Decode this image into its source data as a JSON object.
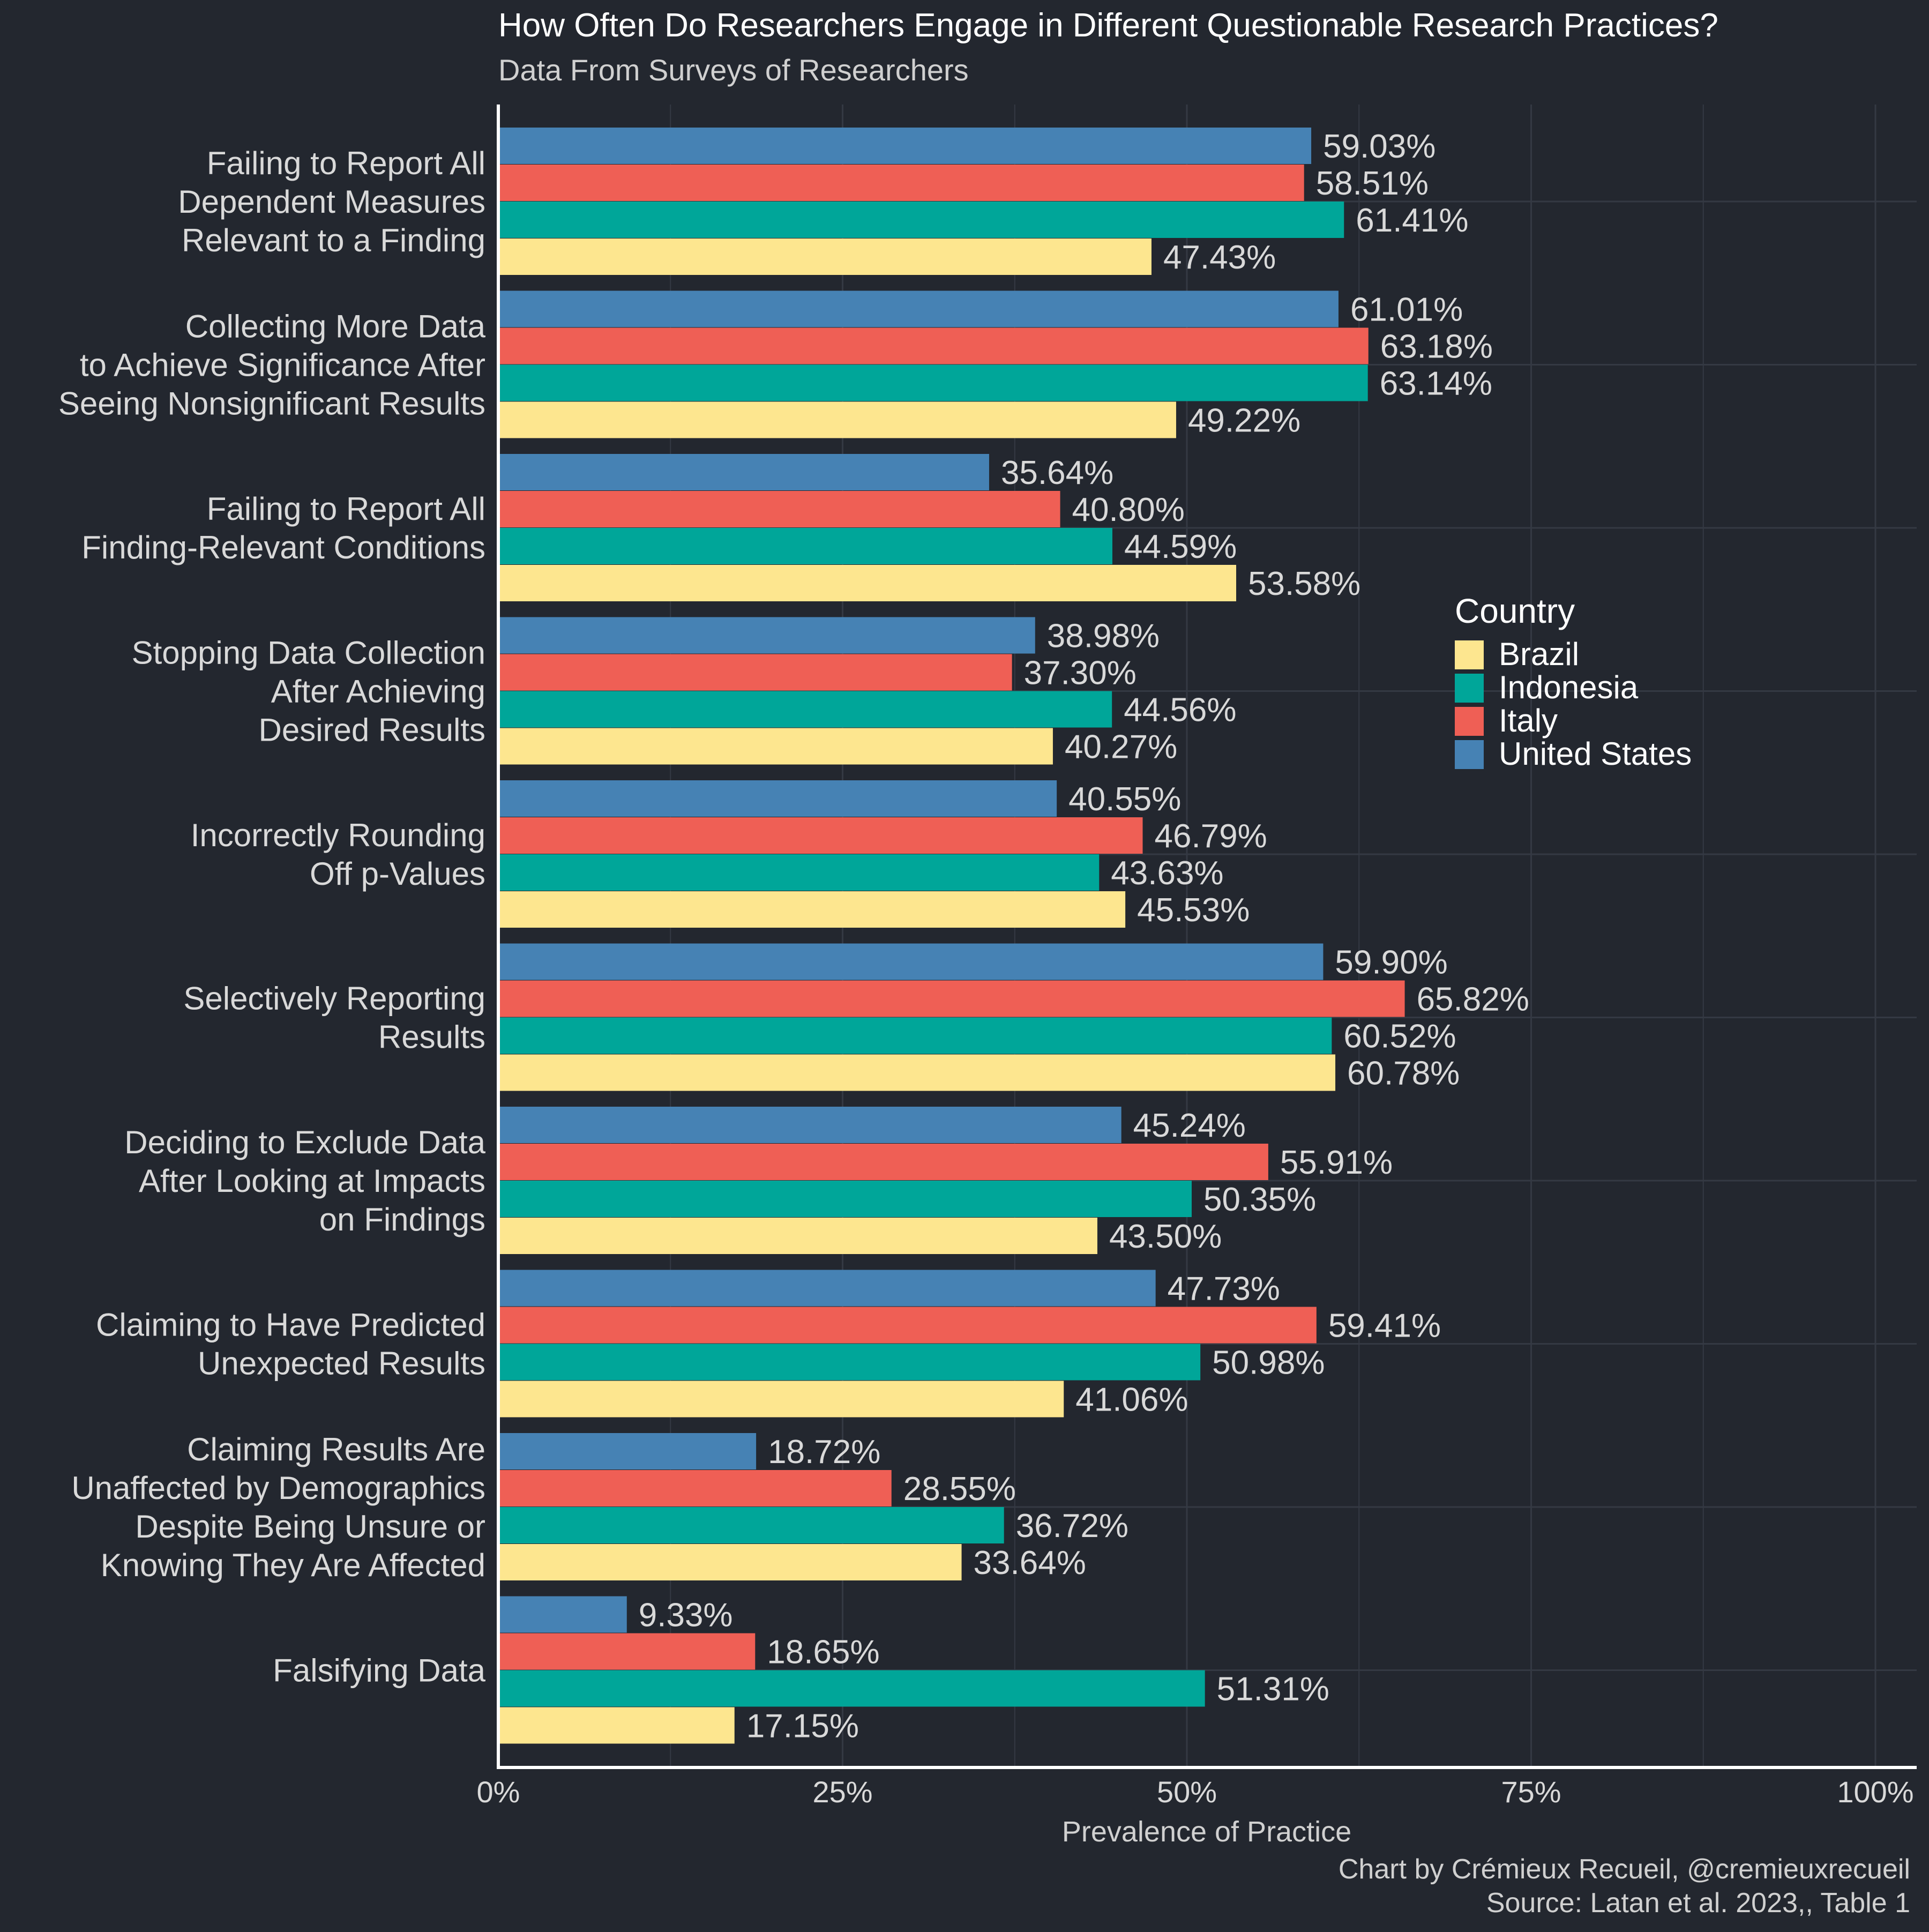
{
  "colors": {
    "background": "#23272f",
    "grid": "#343943",
    "axis": "#ffffff",
    "text": "#d9d9d9",
    "title": "#ffffff",
    "Brazil": "#fde68f",
    "Indonesia": "#00a699",
    "Italy": "#ef5f55",
    "United States": "#4682b4"
  },
  "chart_data": {
    "type": "bar",
    "orientation": "horizontal",
    "title": "How Often Do Researchers Engage in Different Questionable Research Practices?",
    "subtitle": "Data From Surveys of Researchers",
    "xlabel": "Prevalence of Practice",
    "ylabel": "",
    "xlim": [
      0,
      100
    ],
    "x_ticks": [
      "0%",
      "25%",
      "50%",
      "75%",
      "100%"
    ],
    "grid": true,
    "legend_title": "Country",
    "legend_position": "right",
    "legend_order": [
      "Brazil",
      "Indonesia",
      "Italy",
      "United States"
    ],
    "categories": [
      [
        "Failing to Report All",
        "Dependent Measures",
        "Relevant to a Finding"
      ],
      [
        "Collecting More Data",
        "to Achieve Significance After",
        "Seeing Nonsignificant Results"
      ],
      [
        "Failing to Report All",
        "Finding-Relevant Conditions"
      ],
      [
        "Stopping Data Collection",
        "After Achieving",
        "Desired Results"
      ],
      [
        "Incorrectly Rounding",
        "Off p-Values"
      ],
      [
        "Selectively Reporting",
        "Results"
      ],
      [
        "Deciding to Exclude Data",
        "After Looking at Impacts",
        "on Findings"
      ],
      [
        "Claiming to Have Predicted",
        "Unexpected Results"
      ],
      [
        "Claiming Results Are",
        "Unaffected by Demographics",
        "Despite Being Unsure or",
        "Knowing They Are Affected"
      ],
      [
        "Falsifying Data"
      ]
    ],
    "series": [
      {
        "name": "United States",
        "values": [
          59.03,
          61.01,
          35.64,
          38.98,
          40.55,
          59.9,
          45.24,
          47.73,
          18.72,
          9.33
        ],
        "labels": [
          "59.03%",
          "61.01%",
          "35.64%",
          "38.98%",
          "40.55%",
          "59.90%",
          "45.24%",
          "47.73%",
          "18.72%",
          "9.33%"
        ]
      },
      {
        "name": "Italy",
        "values": [
          58.51,
          63.18,
          40.8,
          37.3,
          46.79,
          65.82,
          55.91,
          59.41,
          28.55,
          18.65
        ],
        "labels": [
          "58.51%",
          "63.18%",
          "40.80%",
          "37.30%",
          "46.79%",
          "65.82%",
          "55.91%",
          "59.41%",
          "28.55%",
          "18.65%"
        ]
      },
      {
        "name": "Indonesia",
        "values": [
          61.41,
          63.14,
          44.59,
          44.56,
          43.63,
          60.52,
          50.35,
          50.98,
          36.72,
          51.31
        ],
        "labels": [
          "61.41%",
          "63.14%",
          "44.59%",
          "44.56%",
          "43.63%",
          "60.52%",
          "50.35%",
          "50.98%",
          "36.72%",
          "51.31%"
        ]
      },
      {
        "name": "Brazil",
        "values": [
          47.43,
          49.22,
          53.58,
          40.27,
          45.53,
          60.78,
          43.5,
          41.06,
          33.64,
          17.15
        ],
        "labels": [
          "47.43%",
          "49.22%",
          "53.58%",
          "40.27%",
          "45.53%",
          "60.78%",
          "43.50%",
          "41.06%",
          "33.64%",
          "17.15%"
        ]
      }
    ]
  },
  "caption": {
    "line1": "Chart by Crémieux Recueil, @cremieuxrecueil",
    "line2": "Source: Latan et al. 2023,, Table 1"
  }
}
